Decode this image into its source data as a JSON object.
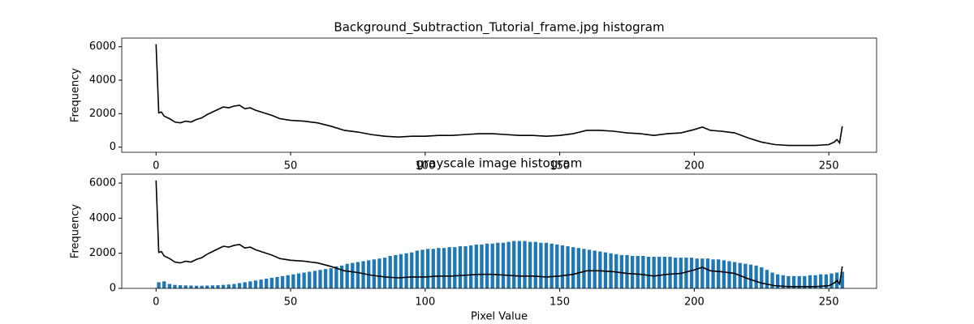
{
  "chart_data": [
    {
      "type": "line",
      "title": "Background_Subtraction_Tutorial_frame.jpg histogram",
      "ylabel": "Frequency",
      "xlim": [
        -12.75,
        267.75
      ],
      "ylim": [
        -310,
        6520
      ],
      "xticks": [
        0,
        50,
        100,
        150,
        200,
        250
      ],
      "yticks": [
        0,
        2000,
        4000,
        6000
      ],
      "series": [
        {
          "type": "line",
          "color": "#000000",
          "x": [
            0,
            1,
            2,
            3,
            5,
            7,
            9,
            11,
            13,
            15,
            17,
            19,
            21,
            23,
            25,
            27,
            29,
            31,
            33,
            35,
            37,
            40,
            43,
            46,
            50,
            55,
            60,
            65,
            70,
            75,
            80,
            85,
            90,
            95,
            100,
            105,
            110,
            115,
            120,
            125,
            130,
            135,
            140,
            145,
            150,
            155,
            160,
            165,
            170,
            175,
            180,
            185,
            190,
            195,
            200,
            203,
            206,
            210,
            215,
            220,
            225,
            230,
            235,
            240,
            245,
            250,
            252,
            253,
            254,
            255
          ],
          "values": [
            6150,
            2050,
            2100,
            1850,
            1700,
            1500,
            1450,
            1550,
            1500,
            1650,
            1750,
            1950,
            2100,
            2250,
            2400,
            2350,
            2450,
            2500,
            2300,
            2350,
            2200,
            2050,
            1900,
            1700,
            1600,
            1550,
            1450,
            1250,
            1000,
            900,
            750,
            650,
            600,
            650,
            650,
            700,
            700,
            750,
            800,
            800,
            750,
            700,
            700,
            650,
            700,
            800,
            1000,
            1000,
            950,
            850,
            800,
            700,
            800,
            850,
            1050,
            1200,
            1000,
            950,
            850,
            550,
            300,
            150,
            100,
            100,
            100,
            150,
            300,
            450,
            250,
            1250
          ]
        }
      ]
    },
    {
      "type": "bar+line",
      "title": "grayscale image histogram",
      "ylabel": "Frequency",
      "xlabel": "Pixel Value",
      "xlim": [
        -12.75,
        267.75
      ],
      "ylim": [
        0,
        6510
      ],
      "xticks": [
        0,
        50,
        100,
        150,
        200,
        250
      ],
      "yticks": [
        0,
        2000,
        4000,
        6000
      ],
      "series": [
        {
          "type": "bar",
          "color": "#1f77b4",
          "x": [
            1,
            3,
            5,
            7,
            9,
            11,
            13,
            15,
            17,
            19,
            21,
            23,
            25,
            27,
            29,
            31,
            33,
            35,
            37,
            39,
            41,
            43,
            45,
            47,
            49,
            51,
            53,
            55,
            57,
            59,
            61,
            63,
            65,
            67,
            69,
            71,
            73,
            75,
            77,
            79,
            81,
            83,
            85,
            87,
            89,
            91,
            93,
            95,
            97,
            99,
            101,
            103,
            105,
            107,
            109,
            111,
            113,
            115,
            117,
            119,
            121,
            123,
            125,
            127,
            129,
            131,
            133,
            135,
            137,
            139,
            141,
            143,
            145,
            147,
            149,
            151,
            153,
            155,
            157,
            159,
            161,
            163,
            165,
            167,
            169,
            171,
            173,
            175,
            177,
            179,
            181,
            183,
            185,
            187,
            189,
            191,
            193,
            195,
            197,
            199,
            201,
            203,
            205,
            207,
            209,
            211,
            213,
            215,
            217,
            219,
            221,
            223,
            225,
            227,
            229,
            231,
            233,
            235,
            237,
            239,
            241,
            243,
            245,
            247,
            249,
            251,
            253,
            255
          ],
          "values": [
            350,
            400,
            250,
            200,
            180,
            170,
            160,
            150,
            150,
            160,
            170,
            180,
            200,
            220,
            250,
            300,
            350,
            400,
            450,
            500,
            550,
            600,
            650,
            700,
            750,
            800,
            850,
            900,
            950,
            1000,
            1050,
            1100,
            1150,
            1250,
            1300,
            1400,
            1450,
            1500,
            1550,
            1600,
            1650,
            1700,
            1750,
            1850,
            1900,
            1950,
            2000,
            2050,
            2150,
            2200,
            2250,
            2250,
            2300,
            2300,
            2350,
            2350,
            2400,
            2400,
            2450,
            2500,
            2500,
            2550,
            2550,
            2600,
            2600,
            2650,
            2700,
            2700,
            2700,
            2650,
            2650,
            2600,
            2600,
            2550,
            2500,
            2450,
            2400,
            2350,
            2300,
            2250,
            2200,
            2150,
            2100,
            2050,
            2000,
            1950,
            1900,
            1900,
            1850,
            1850,
            1850,
            1800,
            1800,
            1800,
            1800,
            1800,
            1750,
            1750,
            1750,
            1750,
            1700,
            1700,
            1700,
            1650,
            1650,
            1600,
            1550,
            1500,
            1450,
            1400,
            1350,
            1300,
            1200,
            1050,
            900,
            800,
            750,
            700,
            700,
            700,
            700,
            750,
            750,
            800,
            800,
            850,
            900,
            950
          ]
        },
        {
          "type": "line",
          "color": "#000000",
          "x": [
            0,
            1,
            2,
            3,
            5,
            7,
            9,
            11,
            13,
            15,
            17,
            19,
            21,
            23,
            25,
            27,
            29,
            31,
            33,
            35,
            37,
            40,
            43,
            46,
            50,
            55,
            60,
            65,
            70,
            75,
            80,
            85,
            90,
            95,
            100,
            105,
            110,
            115,
            120,
            125,
            130,
            135,
            140,
            145,
            150,
            155,
            160,
            165,
            170,
            175,
            180,
            185,
            190,
            195,
            200,
            203,
            206,
            210,
            215,
            220,
            225,
            230,
            235,
            240,
            245,
            250,
            252,
            253,
            254,
            255
          ],
          "values": [
            6150,
            2050,
            2100,
            1850,
            1700,
            1500,
            1450,
            1550,
            1500,
            1650,
            1750,
            1950,
            2100,
            2250,
            2400,
            2350,
            2450,
            2500,
            2300,
            2350,
            2200,
            2050,
            1900,
            1700,
            1600,
            1550,
            1450,
            1250,
            1000,
            900,
            750,
            650,
            600,
            650,
            650,
            700,
            700,
            750,
            800,
            800,
            750,
            700,
            700,
            650,
            700,
            800,
            1000,
            1000,
            950,
            850,
            800,
            700,
            800,
            850,
            1050,
            1200,
            1000,
            950,
            850,
            550,
            300,
            150,
            100,
            100,
            100,
            150,
            300,
            450,
            250,
            1250
          ]
        }
      ]
    }
  ]
}
